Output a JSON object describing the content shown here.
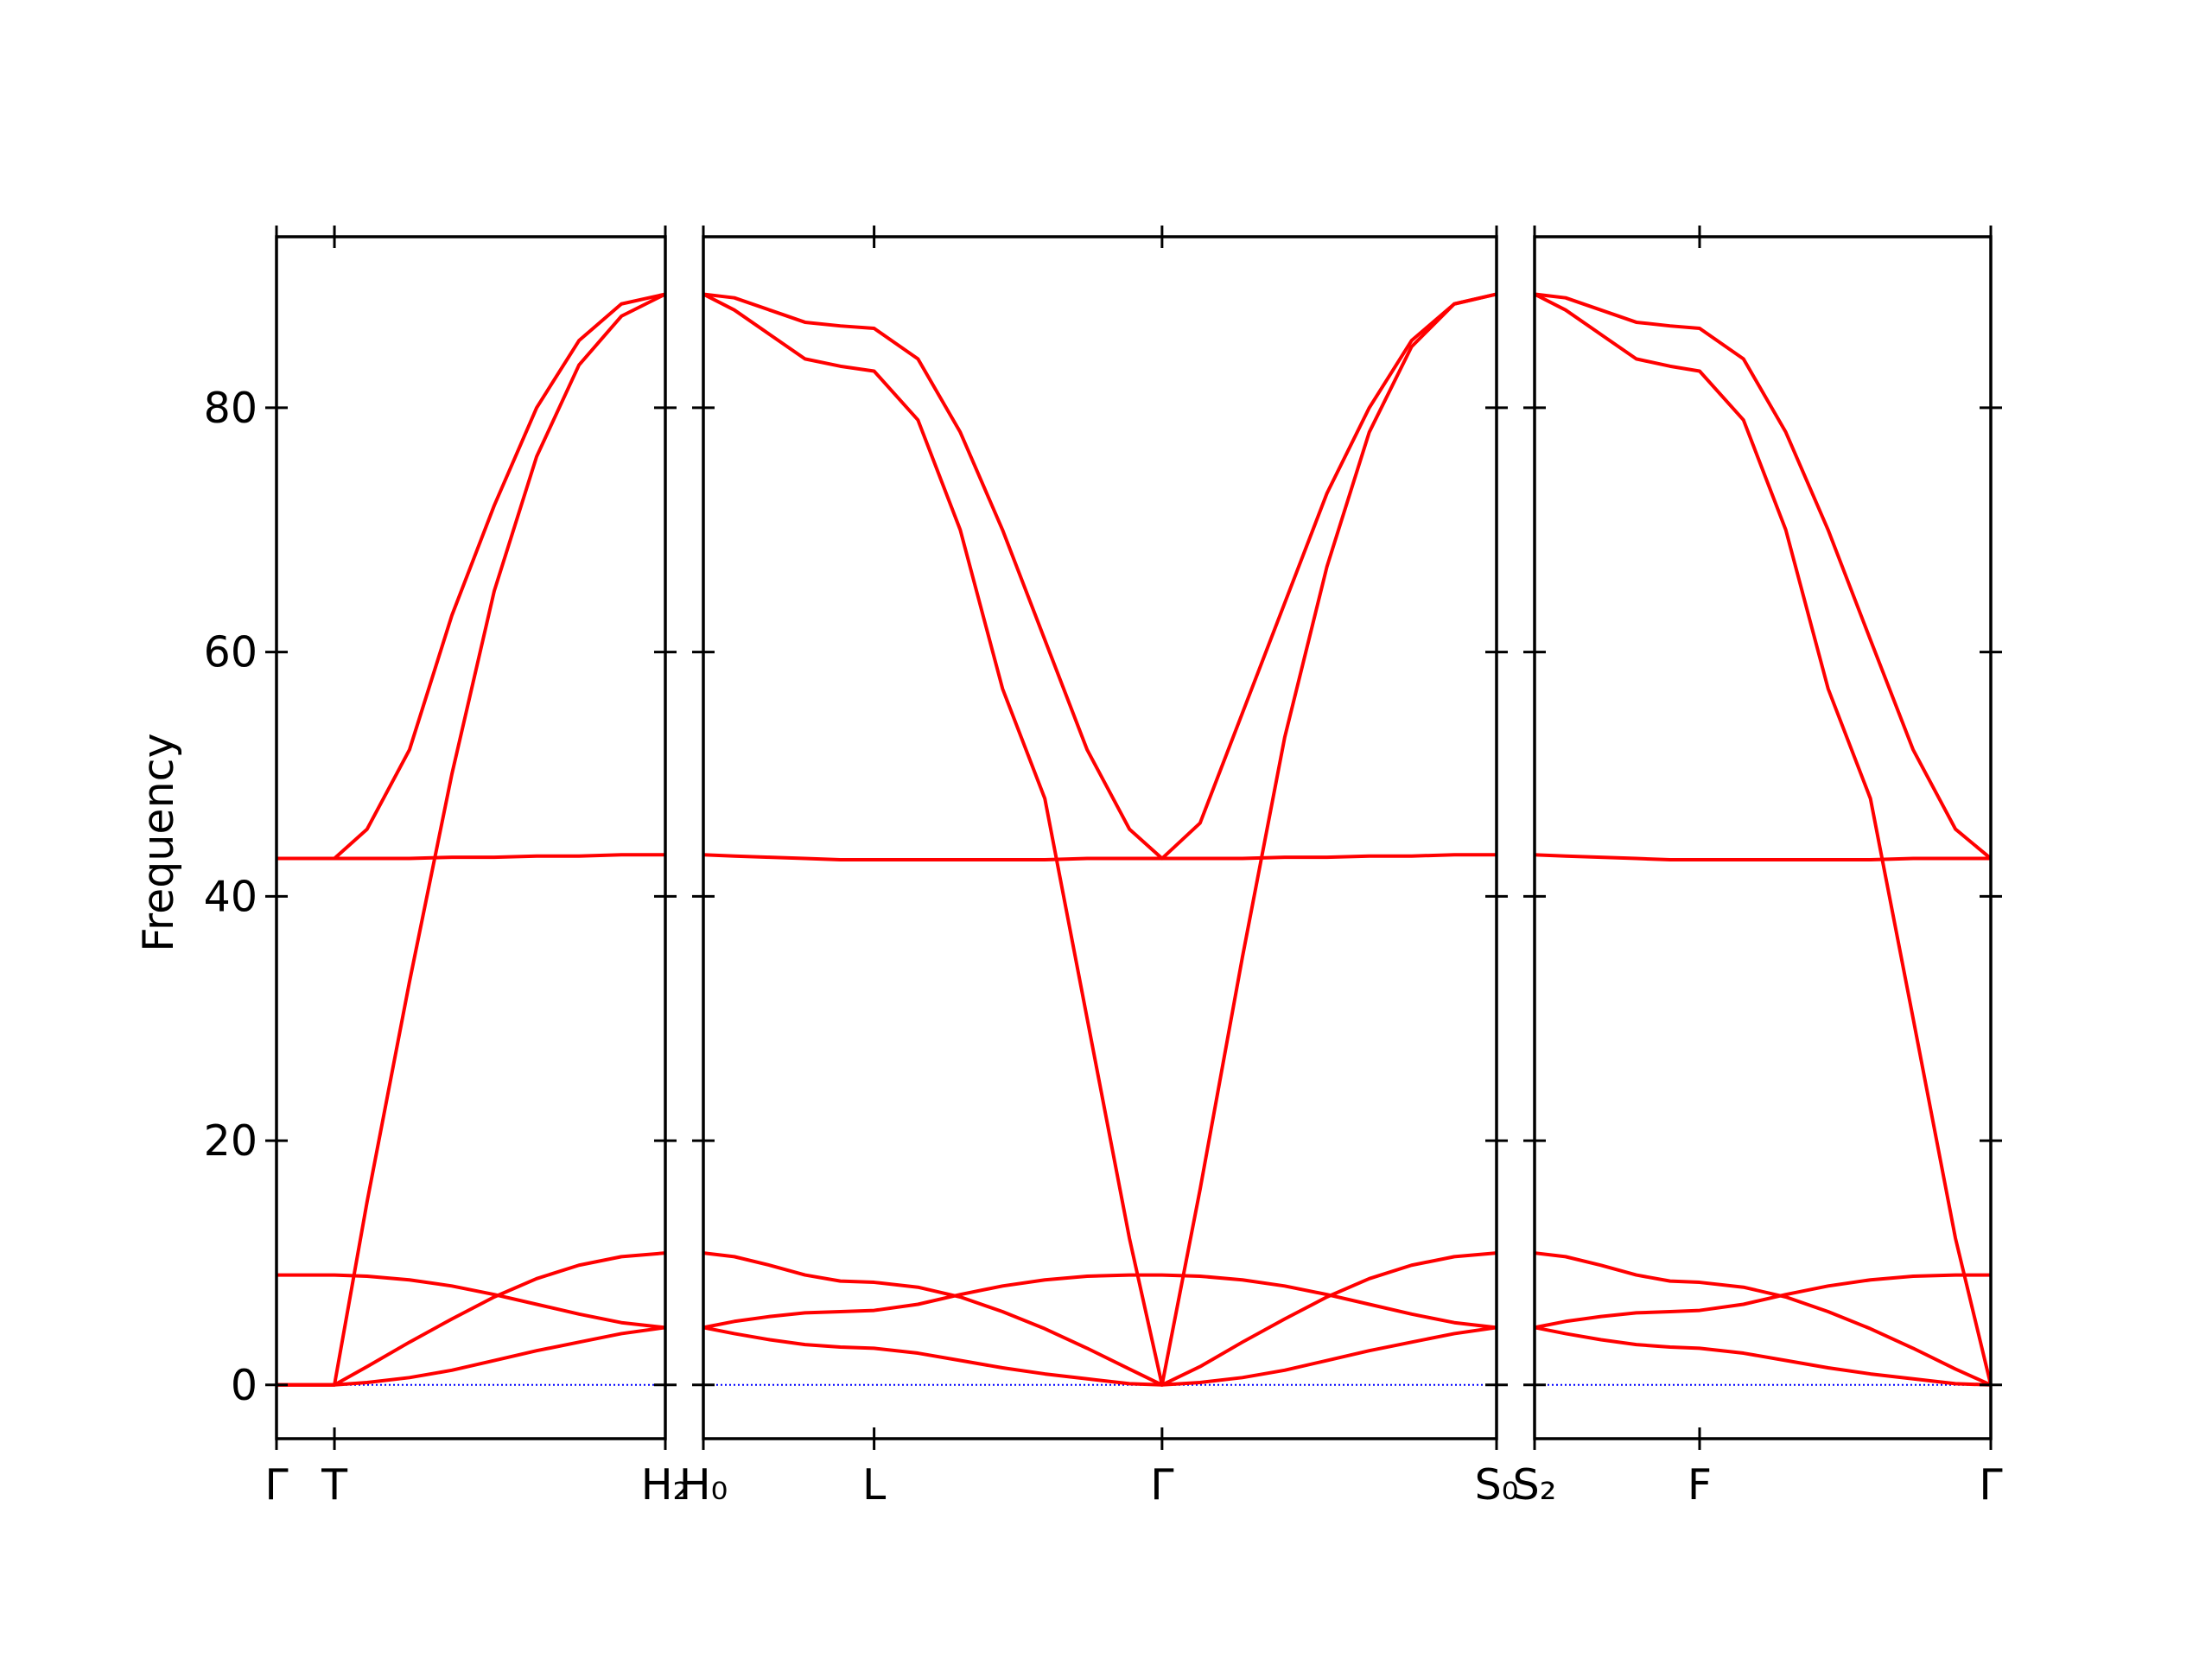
{
  "chart_data": [
    {
      "type": "line",
      "y_label": "Frequency",
      "show_yticklabels": true,
      "color": "#ff0000",
      "hline": 0,
      "hline_color": "#0000ff",
      "xlim": [
        0,
        1.0
      ],
      "ylim": [
        -4.4,
        94
      ],
      "yticks": [
        0,
        20,
        40,
        60,
        80
      ],
      "xticks": [
        {
          "value": 0,
          "label": "Γ"
        },
        {
          "value": 0.149,
          "label": "T"
        },
        {
          "value": 1.0,
          "label": "H₂"
        }
      ],
      "x": [
        0,
        0.075,
        0.149,
        0.233,
        0.342,
        0.451,
        0.56,
        0.669,
        0.778,
        0.887,
        1.0
      ],
      "series": [
        {
          "values": [
            0,
            0,
            0,
            0.2,
            0.6,
            1.2,
            2,
            2.8,
            3.5,
            4.2,
            4.7
          ]
        },
        {
          "values": [
            0,
            0,
            0,
            1.5,
            3.5,
            5.4,
            7.2,
            8.7,
            9.8,
            10.5,
            10.8
          ]
        },
        {
          "values": [
            0,
            0,
            0,
            15,
            33,
            50,
            65,
            76,
            83.5,
            87.5,
            89.3
          ]
        },
        {
          "values": [
            9,
            9,
            9,
            8.9,
            8.6,
            8.1,
            7.4,
            6.6,
            5.8,
            5.1,
            4.7
          ]
        },
        {
          "values": [
            43.1,
            43.1,
            43.1,
            43.1,
            43.1,
            43.2,
            43.2,
            43.3,
            43.3,
            43.4,
            43.4
          ]
        },
        {
          "values": [
            43.1,
            43.1,
            43.1,
            45.5,
            52,
            63,
            72,
            80,
            85.5,
            88.5,
            89.3
          ]
        }
      ]
    },
    {
      "type": "line",
      "show_yticklabels": false,
      "color": "#ff0000",
      "hline": 0,
      "hline_color": "#0000ff",
      "xlim": [
        0,
        2.044
      ],
      "ylim": [
        -4.4,
        94
      ],
      "yticks": [
        0,
        20,
        40,
        60,
        80
      ],
      "xticks": [
        {
          "value": 0,
          "label": "H₀"
        },
        {
          "value": 0.44,
          "label": "L"
        },
        {
          "value": 1.182,
          "label": "Γ"
        },
        {
          "value": 2.044,
          "label": "S₀"
        }
      ],
      "x": [
        0,
        0.08,
        0.171,
        0.262,
        0.353,
        0.44,
        0.553,
        0.662,
        0.771,
        0.88,
        0.989,
        1.098,
        1.182,
        1.28,
        1.389,
        1.498,
        1.607,
        1.716,
        1.825,
        1.935,
        2.044
      ],
      "series": [
        {
          "values": [
            4.7,
            4.2,
            3.7,
            3.3,
            3.1,
            3.0,
            2.6,
            2.0,
            1.4,
            0.9,
            0.5,
            0.1,
            0,
            0.2,
            0.6,
            1.2,
            2,
            2.8,
            3.5,
            4.2,
            4.7
          ]
        },
        {
          "values": [
            10.8,
            10.5,
            9.8,
            9,
            8.5,
            8.4,
            8,
            7.2,
            6,
            4.6,
            3,
            1.3,
            0,
            1.5,
            3.5,
            5.4,
            7.2,
            8.7,
            9.8,
            10.5,
            10.8
          ]
        },
        {
          "values": [
            89.3,
            88,
            86,
            84,
            83.4,
            83,
            79,
            70,
            57,
            48,
            30,
            12,
            0,
            16,
            35,
            53,
            67,
            78,
            85,
            88.5,
            89.3
          ]
        },
        {
          "values": [
            4.7,
            5.2,
            5.6,
            5.9,
            6.0,
            6.1,
            6.6,
            7.4,
            8.1,
            8.6,
            8.9,
            9.0,
            9.0,
            8.9,
            8.6,
            8.1,
            7.4,
            6.6,
            5.8,
            5.1,
            4.7
          ]
        },
        {
          "values": [
            43.4,
            43.3,
            43.2,
            43.1,
            43,
            43,
            43,
            43,
            43,
            43,
            43.1,
            43.1,
            43.1,
            43.1,
            43.1,
            43.2,
            43.2,
            43.3,
            43.3,
            43.4,
            43.4
          ]
        },
        {
          "values": [
            89.3,
            89,
            88,
            87,
            86.7,
            86.5,
            84,
            78,
            70,
            61,
            52,
            45.5,
            43.1,
            46,
            55,
            64,
            73,
            80,
            85.5,
            88.5,
            89.3
          ]
        }
      ]
    },
    {
      "type": "line",
      "show_yticklabels": false,
      "color": "#ff0000",
      "hline": 0,
      "hline_color": "#0000ff",
      "xlim": [
        0,
        1.175
      ],
      "ylim": [
        -4.4,
        94
      ],
      "yticks": [
        0,
        20,
        40,
        60,
        80
      ],
      "xticks": [
        {
          "value": 0,
          "label": "S₂"
        },
        {
          "value": 0.425,
          "label": "F"
        },
        {
          "value": 1.175,
          "label": "Γ"
        }
      ],
      "x": [
        0,
        0.08,
        0.171,
        0.262,
        0.349,
        0.425,
        0.538,
        0.647,
        0.756,
        0.865,
        0.975,
        1.084,
        1.175
      ],
      "series": [
        {
          "values": [
            4.7,
            4.2,
            3.7,
            3.3,
            3.1,
            3.0,
            2.6,
            2.0,
            1.4,
            0.9,
            0.5,
            0.1,
            0
          ]
        },
        {
          "values": [
            10.8,
            10.5,
            9.8,
            9,
            8.5,
            8.4,
            8,
            7.2,
            6,
            4.6,
            3,
            1.3,
            0
          ]
        },
        {
          "values": [
            89.3,
            88,
            86,
            84,
            83.4,
            83,
            79,
            70,
            57,
            48,
            30,
            12,
            0
          ]
        },
        {
          "values": [
            4.7,
            5.2,
            5.6,
            5.9,
            6.0,
            6.1,
            6.6,
            7.4,
            8.1,
            8.6,
            8.9,
            9.0,
            9.0
          ]
        },
        {
          "values": [
            43.4,
            43.3,
            43.2,
            43.1,
            43,
            43,
            43,
            43,
            43,
            43,
            43.1,
            43.1,
            43.1
          ]
        },
        {
          "values": [
            89.3,
            89,
            88,
            87,
            86.7,
            86.5,
            84,
            78,
            70,
            61,
            52,
            45.5,
            43.1
          ]
        }
      ]
    }
  ]
}
